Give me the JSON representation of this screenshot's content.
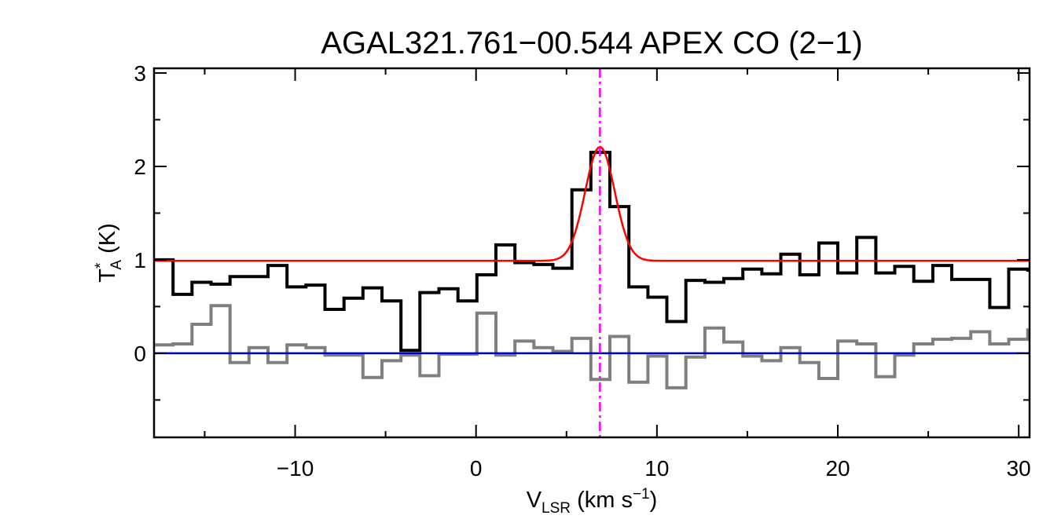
{
  "chart_data": {
    "type": "line",
    "title": "AGAL321.761−00.544  APEX CO (2−1)",
    "xlabel": {
      "main": "V",
      "sub": "LSR",
      "unit_pre": " (km s",
      "sup": "−1",
      "unit_post": ")"
    },
    "ylabel": {
      "main": "T",
      "sup": "*",
      "sub": "A",
      "unit": " (K)"
    },
    "xlim": [
      -17.8,
      30.6
    ],
    "ylim": [
      -0.9,
      3.05
    ],
    "xticks": [
      {
        "v": -10,
        "label": "−10"
      },
      {
        "v": 0,
        "label": "0"
      },
      {
        "v": 10,
        "label": "10"
      },
      {
        "v": 20,
        "label": "20"
      },
      {
        "v": 30,
        "label": "30"
      }
    ],
    "yticks": [
      {
        "v": 0,
        "label": "0"
      },
      {
        "v": 1,
        "label": "1"
      },
      {
        "v": 2,
        "label": "2"
      },
      {
        "v": 3,
        "label": "3"
      }
    ],
    "channel_width": 1.05,
    "channel_start": -17.8,
    "series": [
      {
        "name": "",
        "color": "#000000",
        "style": "step",
        "values": [
          1.0,
          0.63,
          0.76,
          0.74,
          0.82,
          0.82,
          0.94,
          0.71,
          0.73,
          0.47,
          0.59,
          0.7,
          0.56,
          0.03,
          0.65,
          0.69,
          0.56,
          0.84,
          1.16,
          0.97,
          0.95,
          0.91,
          1.75,
          2.15,
          1.57,
          0.71,
          0.6,
          0.34,
          0.78,
          0.76,
          0.8,
          0.9,
          0.85,
          1.06,
          0.84,
          1.18,
          0.86,
          1.24,
          0.86,
          0.93,
          0.77,
          0.94,
          0.79,
          0.79,
          0.49,
          0.9,
          0.89
        ]
      },
      {
        "name": "",
        "color": "#7f7f7f",
        "style": "step",
        "values": [
          0.09,
          0.1,
          0.31,
          0.51,
          -0.1,
          0.06,
          -0.1,
          0.09,
          0.06,
          -0.02,
          -0.02,
          -0.26,
          -0.08,
          -0.02,
          -0.24,
          -0.01,
          -0.01,
          0.43,
          -0.02,
          0.13,
          0.06,
          0.02,
          0.16,
          -0.28,
          0.18,
          -0.31,
          -0.03,
          -0.37,
          -0.04,
          0.27,
          0.12,
          -0.03,
          -0.08,
          0.06,
          -0.1,
          -0.27,
          0.13,
          0.1,
          -0.25,
          -0.02,
          0.1,
          0.15,
          0.16,
          0.23,
          0.1,
          0.15,
          0.25
        ]
      },
      {
        "name": "",
        "color": "#ff0000",
        "style": "gaussian",
        "baseline": 0.99,
        "amplitude": 1.22,
        "center": 6.85,
        "sigma": 0.82
      }
    ],
    "hlines": [
      {
        "y": 0,
        "color": "#0000cc"
      }
    ],
    "vlines": [
      {
        "x": 6.85,
        "color": "#ff00ff",
        "dash": "dashdot"
      }
    ],
    "grid": false,
    "legend": "none"
  }
}
